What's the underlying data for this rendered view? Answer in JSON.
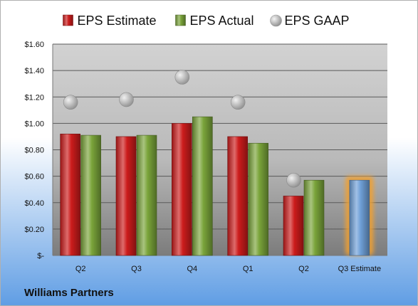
{
  "company": "Williams Partners",
  "chart_data": {
    "type": "bar",
    "categories": [
      "Q2",
      "Q3",
      "Q4",
      "Q1",
      "Q2",
      "Q3 Estimate"
    ],
    "series": [
      {
        "name": "EPS Estimate",
        "values": [
          0.92,
          0.9,
          1.0,
          0.9,
          0.45,
          null
        ],
        "color": "#cc1c1c"
      },
      {
        "name": "EPS Actual",
        "values": [
          0.91,
          0.91,
          1.05,
          0.85,
          0.57,
          null
        ],
        "color": "#7aa43a"
      },
      {
        "name": "EPS GAAP",
        "values": [
          1.16,
          1.18,
          1.35,
          1.16,
          0.57,
          null
        ],
        "color": "#b4b4b4",
        "marker": "circle"
      }
    ],
    "estimate": {
      "category": "Q3 Estimate",
      "value": 0.57,
      "color": "#6fa0d8",
      "glow": "#f0a030"
    },
    "ylim": [
      0,
      1.6
    ],
    "ytick_values": [
      0,
      0.2,
      0.4,
      0.6,
      0.8,
      1.0,
      1.2,
      1.4,
      1.6
    ],
    "ytick_labels": [
      "$-",
      "$0.20",
      "$0.40",
      "$0.60",
      "$0.80",
      "$1.00",
      "$1.20",
      "$1.40",
      "$1.60"
    ],
    "grid": true,
    "legend_position": "top",
    "colors": {
      "background_top": "#ffffff",
      "background_bottom": "#5f9de4",
      "plot_top": "#d2d2d2",
      "plot_bottom": "#7c7c7c",
      "gridline": "#5a5a5a"
    }
  }
}
